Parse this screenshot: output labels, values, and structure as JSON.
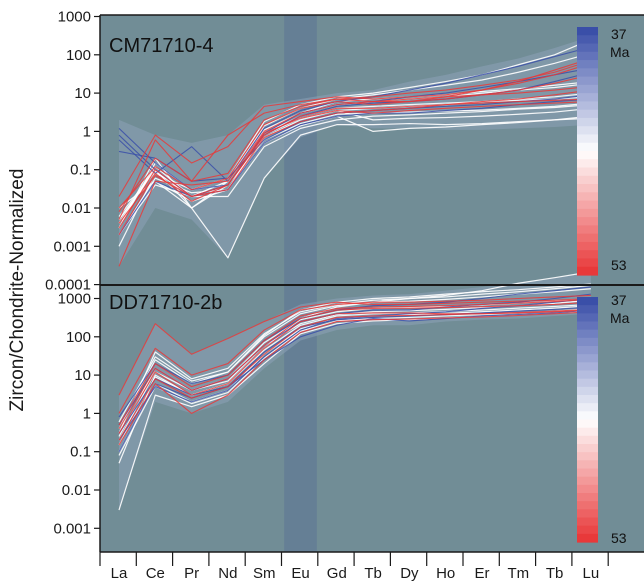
{
  "chart_data": {
    "type": "line",
    "ylabel": "Zircon/Chondrite-Normalized",
    "yscale": "log",
    "categories": [
      "La",
      "Ce",
      "Pr",
      "Nd",
      "Sm",
      "Eu",
      "Gd",
      "Tb",
      "Dy",
      "Ho",
      "Er",
      "Tm",
      "Tb",
      "Lu"
    ],
    "highlight_band": "Eu",
    "colors": {
      "panel_bg": "#718d96",
      "band": "#657f95",
      "line_white": "#ffffff",
      "line_blue": "#3a4fa8",
      "line_red": "#e8393a"
    },
    "colorbar": {
      "top_label": "37",
      "top_unit": "Ma",
      "bottom_label": "53",
      "top_color": "#3a4fa8",
      "mid_color": "#ffffff",
      "bottom_color": "#e8393a"
    },
    "panels": [
      {
        "label": "CM71710-4",
        "ylim": [
          0.0001,
          1000
        ],
        "yticks": [
          "1000",
          "100",
          "10",
          "1",
          "0.1",
          "0.01",
          "0.001",
          "0.0001"
        ],
        "envelope_low": [
          0.0003,
          0.01,
          0.005,
          0.0005,
          0.06,
          0.7,
          1.5,
          1.2,
          1.2,
          1.1,
          1.1,
          1.2,
          1.3,
          1.5
        ],
        "envelope_high": [
          2,
          0.8,
          0.5,
          0.8,
          5,
          7,
          10,
          12,
          20,
          30,
          50,
          80,
          150,
          300
        ],
        "series": [
          {
            "tone": "blue",
            "values": [
              1.2,
              0.15,
              0.03,
              0.04,
              0.8,
              2.5,
              4.5,
              5.5,
              6,
              7,
              9,
              12,
              20,
              35
            ]
          },
          {
            "tone": "blue",
            "values": [
              0.6,
              0.08,
              0.4,
              0.05,
              1.2,
              3.5,
              6,
              8,
              12,
              18,
              30,
              50,
              90,
              160
            ]
          },
          {
            "tone": "blue",
            "values": [
              0.3,
              0.2,
              0.05,
              0.06,
              0.6,
              1.8,
              3,
              3.5,
              4,
              4.5,
              5,
              6,
              7,
              9
            ]
          },
          {
            "tone": "blue",
            "values": [
              0.002,
              0.05,
              0.02,
              0.03,
              0.5,
              1.5,
              2.5,
              3,
              3,
              3.5,
              4,
              5,
              6,
              7
            ]
          },
          {
            "tone": "blue",
            "values": [
              0.8,
              0.1,
              0.02,
              0.04,
              0.9,
              3,
              5,
              6,
              8,
              10,
              14,
              20,
              30,
              45
            ]
          },
          {
            "tone": "white",
            "values": [
              0.01,
              0.05,
              0.01,
              0.0005,
              0.06,
              0.8,
              1.5,
              1.5,
              1.6,
              1.5,
              1.6,
              1.8,
              2,
              2.2
            ]
          },
          {
            "tone": "white",
            "values": [
              0.005,
              0.1,
              0.02,
              0.02,
              0.4,
              1.2,
              2,
              2.5,
              2.7,
              3,
              3.3,
              3.8,
              4.2,
              5
            ]
          },
          {
            "tone": "white",
            "values": [
              0.002,
              0.05,
              0.015,
              0.03,
              0.7,
              2,
              3.5,
              4,
              4.5,
              5,
              6,
              7,
              8,
              10
            ]
          },
          {
            "tone": "white",
            "values": [
              0.003,
              0.2,
              0.01,
              0.05,
              1,
              3,
              5,
              6,
              7,
              8,
              10,
              12,
              14,
              18
            ]
          },
          {
            "tone": "white",
            "values": [
              0.001,
              0.08,
              0.03,
              0.04,
              0.6,
              1.6,
              2.8,
              3,
              3.2,
              3.4,
              3.6,
              4,
              4.5,
              5.5
            ]
          },
          {
            "tone": "white",
            "values": [
              0.004,
              0.12,
              0.02,
              0.05,
              1.4,
              4,
              7,
              9,
              12,
              16,
              22,
              35,
              60,
              110
            ]
          },
          {
            "tone": "white",
            "values": [
              0.002,
              0.06,
              0.025,
              0.03,
              0.9,
              2.5,
              4,
              4.5,
              5,
              5.5,
              6,
              6.5,
              7,
              8
            ]
          },
          {
            "tone": "white",
            "values": [
              0.006,
              0.1,
              0.01,
              0.04,
              0.8,
              2.2,
              3.5,
              2,
              2.2,
              2.3,
              2.5,
              2.8,
              3.2,
              4
            ]
          },
          {
            "tone": "white",
            "values": [
              0.003,
              0.15,
              0.03,
              0.06,
              1.8,
              5,
              8,
              10,
              14,
              20,
              30,
              55,
              100,
              250
            ]
          },
          {
            "tone": "white",
            "values": [
              0.002,
              0.04,
              0.02,
              0.03,
              0.5,
              1.4,
              2.5,
              1,
              1.2,
              1.3,
              1.5,
              1.7,
              2,
              2.5
            ]
          },
          {
            "tone": "white",
            "values": [
              0.005,
              0.09,
              0.02,
              0.05,
              1.1,
              3,
              6,
              7,
              8,
              9,
              11,
              13,
              16,
              20
            ]
          },
          {
            "tone": "red",
            "values": [
              0.02,
              0.8,
              0.15,
              0.4,
              4.5,
              6,
              8,
              7,
              8,
              9,
              12,
              18,
              30,
              60
            ]
          },
          {
            "tone": "red",
            "values": [
              0.005,
              0.6,
              0.05,
              0.8,
              3,
              5,
              7,
              6,
              6,
              7,
              9,
              12,
              18,
              30
            ]
          },
          {
            "tone": "red",
            "values": [
              0.003,
              0.1,
              0.02,
              0.03,
              0.7,
              1.8,
              3,
              3.5,
              4,
              5,
              6,
              7,
              9,
              12
            ]
          },
          {
            "tone": "red",
            "values": [
              0.0003,
              0.05,
              0.04,
              0.05,
              1,
              3,
              5,
              6,
              7,
              8,
              9,
              10,
              12,
              15
            ]
          },
          {
            "tone": "red",
            "values": [
              0.01,
              0.12,
              0.03,
              0.06,
              1.5,
              4,
              6,
              5,
              6,
              8,
              12,
              20,
              40,
              80
            ]
          },
          {
            "tone": "red",
            "values": [
              0.004,
              0.07,
              0.02,
              0.04,
              0.8,
              2.5,
              4,
              4,
              4.5,
              5,
              5.5,
              6,
              6.5,
              7
            ]
          },
          {
            "tone": "red",
            "values": [
              0.008,
              0.2,
              0.05,
              0.08,
              2,
              4.5,
              7,
              8,
              10,
              12,
              16,
              22,
              35,
              70
            ]
          },
          {
            "tone": "red",
            "values": [
              0.002,
              0.08,
              0.015,
              0.04,
              0.9,
              2.2,
              3.5,
              3,
              3.5,
              4,
              4.5,
              5,
              5.5,
              6
            ]
          }
        ]
      },
      {
        "label": "DD71710-2b",
        "ylim": [
          0.001,
          10000
        ],
        "yticks": [
          "1000",
          "100",
          "10",
          "1",
          "0.1",
          "0.01",
          "0.001"
        ],
        "envelope_low": [
          0.003,
          2,
          1,
          2,
          15,
          80,
          150,
          200,
          200,
          250,
          280,
          300,
          350,
          400
        ],
        "envelope_high": [
          3,
          220,
          35,
          90,
          250,
          700,
          1000,
          1200,
          1300,
          1600,
          2000,
          2600,
          3500,
          5000
        ],
        "series": [
          {
            "tone": "blue",
            "values": [
              0.3,
              8,
              3,
              5,
              25,
              100,
              200,
              300,
              260,
              300,
              350,
              380,
              420,
              500
            ]
          },
          {
            "tone": "blue",
            "values": [
              0.5,
              15,
              4,
              8,
              60,
              250,
              400,
              500,
              500,
              600,
              700,
              800,
              1000,
              1300
            ]
          },
          {
            "tone": "blue",
            "values": [
              0.2,
              5,
              2,
              4,
              30,
              150,
              300,
              350,
              400,
              450,
              550,
              650,
              800,
              1000
            ]
          },
          {
            "tone": "blue",
            "values": [
              0.8,
              20,
              6,
              10,
              80,
              300,
              500,
              650,
              700,
              800,
              1000,
              1300,
              1600,
              2000
            ]
          },
          {
            "tone": "blue",
            "values": [
              0.1,
              6,
              2.5,
              5,
              40,
              180,
              280,
              320,
              350,
              380,
              420,
              470,
              520,
              600
            ]
          },
          {
            "tone": "white",
            "values": [
              0.003,
              3,
              1.5,
              3,
              20,
              120,
              220,
              260,
              280,
              310,
              340,
              380,
              420,
              480
            ]
          },
          {
            "tone": "white",
            "values": [
              0.05,
              10,
              3,
              6,
              50,
              300,
              600,
              800,
              1000,
              1200,
              1600,
              2500,
              3500,
              5000
            ]
          },
          {
            "tone": "white",
            "values": [
              0.3,
              40,
              8,
              15,
              120,
              450,
              700,
              900,
              1000,
              1100,
              1300,
              1500,
              1800,
              2200
            ]
          },
          {
            "tone": "white",
            "values": [
              0.2,
              12,
              4,
              7,
              60,
              220,
              380,
              450,
              480,
              520,
              580,
              650,
              750,
              900
            ]
          },
          {
            "tone": "white",
            "values": [
              0.1,
              6,
              2,
              4,
              35,
              160,
              300,
              350,
              380,
              410,
              450,
              500,
              560,
              650
            ]
          },
          {
            "tone": "white",
            "values": [
              0.4,
              25,
              6,
              12,
              100,
              400,
              650,
              800,
              850,
              950,
              1100,
              1300,
              1500,
              1800
            ]
          },
          {
            "tone": "white",
            "values": [
              0.15,
              9,
              3,
              6,
              45,
              200,
              350,
              400,
              420,
              460,
              500,
              560,
              620,
              700
            ]
          },
          {
            "tone": "white",
            "values": [
              0.6,
              30,
              7,
              12,
              110,
              500,
              800,
              1000,
              1100,
              1300,
              1500,
              1700,
              2000,
              2400
            ]
          },
          {
            "tone": "white",
            "values": [
              0.08,
              5,
              1.8,
              3.5,
              28,
              140,
              260,
              300,
              320,
              350,
              380,
              420,
              470,
              540
            ]
          },
          {
            "tone": "white",
            "values": [
              0.25,
              15,
              4,
              8,
              70,
              280,
              450,
              550,
              580,
              620,
              680,
              760,
              850,
              1000
            ]
          },
          {
            "tone": "red",
            "values": [
              3,
              220,
              35,
              90,
              250,
              600,
              800,
              700,
              700,
              750,
              800,
              850,
              900,
              1000
            ]
          },
          {
            "tone": "red",
            "values": [
              1,
              50,
              10,
              20,
              150,
              500,
              700,
              800,
              800,
              850,
              900,
              1000,
              1100,
              1200
            ]
          },
          {
            "tone": "red",
            "values": [
              0.3,
              12,
              3,
              6,
              50,
              250,
              400,
              420,
              420,
              400,
              400,
              420,
              450,
              500
            ]
          },
          {
            "tone": "red",
            "values": [
              0.2,
              8,
              2.5,
              5,
              35,
              180,
              320,
              350,
              360,
              380,
              400,
              430,
              470,
              520
            ]
          },
          {
            "tone": "red",
            "values": [
              0.5,
              20,
              5,
              10,
              80,
              350,
              550,
              600,
              620,
              650,
              700,
              760,
              830,
              950
            ]
          },
          {
            "tone": "red",
            "values": [
              0.15,
              6,
              1,
              3,
              25,
              130,
              250,
              280,
              290,
              310,
              330,
              360,
              400,
              450
            ]
          },
          {
            "tone": "red",
            "values": [
              0.4,
              15,
              4,
              8,
              60,
              300,
              500,
              550,
              560,
              580,
              610,
              650,
              700,
              800
            ]
          }
        ]
      }
    ]
  }
}
